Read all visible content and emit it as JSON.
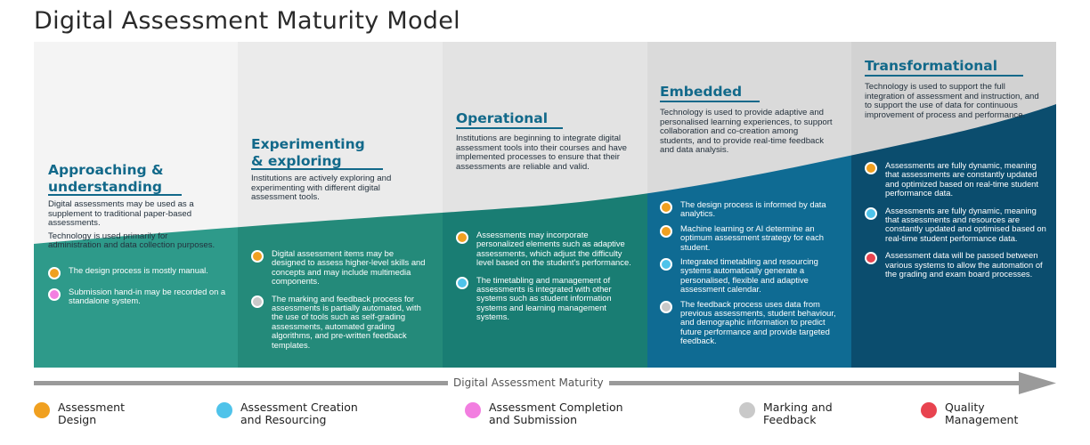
{
  "title": "Digital Assessment Maturity Model",
  "colors": {
    "design": "#f0a020",
    "creation": "#4fc3ea",
    "completion": "#f27ee0",
    "marking": "#c9c9c9",
    "quality": "#e8434f",
    "heading": "#12698a"
  },
  "stages": [
    {
      "heading_lines": [
        "Approaching &",
        "understanding"
      ],
      "desc": [
        "Digital assessments may be used as a supplement to traditional paper-based assessments.",
        "Technology is used primarily for administration and data collection purposes."
      ],
      "items": [
        {
          "category": "design",
          "text": "The design process is mostly manual."
        },
        {
          "category": "completion",
          "text": "Submission hand-in may be recorded on a standalone system."
        }
      ]
    },
    {
      "heading_lines": [
        "Experimenting",
        "& exploring"
      ],
      "desc": [
        "Institutions are actively exploring and experimenting with different digital assessment tools."
      ],
      "items": [
        {
          "category": "design",
          "text": "Digital assessment items may be designed to assess higher-level skills and concepts and may include multimedia components."
        },
        {
          "category": "marking",
          "text": "The marking and feedback process for assessments is partially automated, with the use of tools such as self-grading assessments, automated grading algorithms, and pre-written feedback templates."
        }
      ]
    },
    {
      "heading_lines": [
        "Operational"
      ],
      "desc": [
        "Institutions are beginning to integrate digital assessment tools into their courses and have implemented processes to ensure that their assessments are reliable and valid."
      ],
      "items": [
        {
          "category": "design",
          "text": "Assessments may incorporate personalized elements such as adaptive assessments, which adjust the difficulty level based on the student's performance."
        },
        {
          "category": "creation",
          "text": "The timetabling and management of assessments is integrated with other systems such as student information systems and learning management systems."
        }
      ]
    },
    {
      "heading_lines": [
        "Embedded"
      ],
      "desc": [
        "Technology is used to provide adaptive and personalised learning experiences, to support collaboration and co-creation among students, and to provide real-time feedback and data analysis."
      ],
      "items": [
        {
          "category": "design",
          "text": "The design process is informed by data analytics."
        },
        {
          "category": "design",
          "text": "Machine learning or AI determine an optimum assessment strategy for each student."
        },
        {
          "category": "creation",
          "text": "Integrated timetabling and resourcing systems automatically generate a personalised, flexible and adaptive assessment calendar."
        },
        {
          "category": "marking",
          "text": "The feedback process uses data from previous assessments, student behaviour, and demographic information to predict future performance and provide targeted feedback."
        }
      ]
    },
    {
      "heading_lines": [
        "Transformational"
      ],
      "desc": [
        "Technology is used to support the full integration of assessment and instruction, and to support the use of data for continuous improvement of process and performance."
      ],
      "items": [
        {
          "category": "design",
          "text": "Assessments are fully dynamic, meaning that assessments are constantly updated and optimized based on real-time student performance data."
        },
        {
          "category": "creation",
          "text": "Assessments are fully dynamic, meaning that assessments and resources are constantly updated and optimised based on real-time student performance data."
        },
        {
          "category": "quality",
          "text": "Assessment data will be passed between various systems to allow the automation of the grading and exam board processes."
        }
      ]
    }
  ],
  "axis_label": "Digital Assessment Maturity",
  "legend": [
    {
      "category": "design",
      "lines": [
        "Assessment",
        "Design"
      ]
    },
    {
      "category": "creation",
      "lines": [
        "Assessment Creation",
        "and Resourcing"
      ]
    },
    {
      "category": "completion",
      "lines": [
        "Assessment Completion",
        "and Submission"
      ]
    },
    {
      "category": "marking",
      "lines": [
        "Marking and",
        "Feedback"
      ]
    },
    {
      "category": "quality",
      "lines": [
        "Quality",
        "Management"
      ]
    }
  ]
}
